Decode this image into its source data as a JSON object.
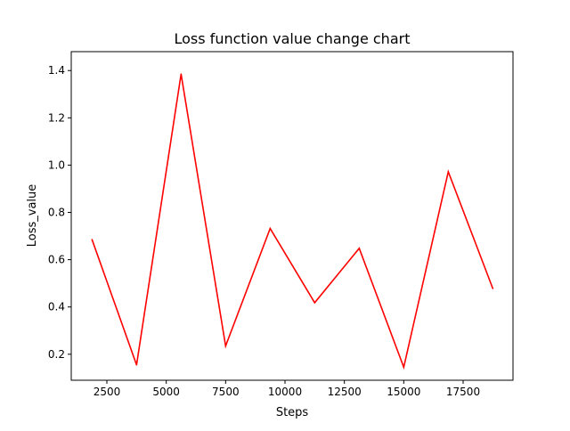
{
  "chart_data": {
    "type": "line",
    "title": "Loss function value change chart",
    "xlabel": "Steps",
    "ylabel": "Loss_value",
    "xlim": [
      1000,
      19600
    ],
    "ylim": [
      0.09,
      1.48
    ],
    "xticks": [
      2500,
      5000,
      7500,
      10000,
      12500,
      15000,
      17500
    ],
    "yticks": [
      0.2,
      0.4,
      0.6,
      0.8,
      1.0,
      1.2,
      1.4
    ],
    "grid": false,
    "series": [
      {
        "color": "#ff0000",
        "x": [
          1875,
          3750,
          5625,
          7500,
          9375,
          11250,
          13125,
          15000,
          16875,
          18750
        ],
        "y": [
          0.685,
          0.155,
          1.385,
          0.235,
          0.732,
          0.418,
          0.648,
          0.145,
          0.972,
          0.478
        ]
      }
    ]
  }
}
